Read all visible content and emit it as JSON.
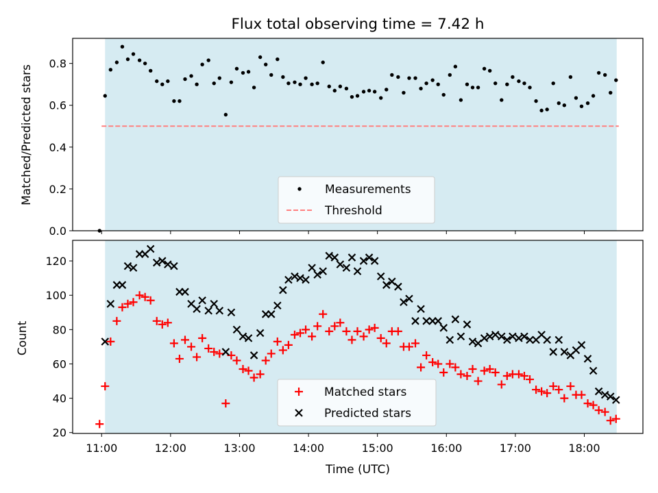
{
  "figure_title": "Flux total observing time = 7.42 h",
  "colors": {
    "observing_band": "#add8e6",
    "measurements": "#000000",
    "threshold": "#ff7f7f",
    "matched": "#ff0000",
    "predicted": "#000000"
  },
  "chart_data": [
    {
      "type": "scatter",
      "title": "Flux total observing time = 7.42 h",
      "xlabel": "",
      "ylabel": "Matched/Predicted stars",
      "xlim": [
        10.58,
        18.85
      ],
      "ylim": [
        0,
        0.92
      ],
      "yticks": [
        0.0,
        0.2,
        0.4,
        0.6,
        0.8
      ],
      "ytick_labels": [
        "0.0",
        "0.2",
        "0.4",
        "0.6",
        "0.8"
      ],
      "xticks": [
        11,
        12,
        13,
        14,
        15,
        16,
        17,
        18
      ],
      "observing_window": [
        11.05,
        18.47
      ],
      "legend": {
        "position": "bottom-center",
        "entries": [
          "Measurements",
          "Threshold"
        ]
      },
      "threshold": {
        "name": "Threshold",
        "y": 0.5,
        "x_range": [
          11.0,
          18.5
        ]
      },
      "series": [
        {
          "name": "Measurements",
          "x": [
            10.97,
            11.05,
            11.13,
            11.22,
            11.3,
            11.38,
            11.46,
            11.55,
            11.63,
            11.71,
            11.8,
            11.88,
            11.96,
            12.05,
            12.13,
            12.21,
            12.3,
            12.38,
            12.46,
            12.55,
            12.63,
            12.71,
            12.8,
            12.88,
            12.96,
            13.05,
            13.13,
            13.21,
            13.3,
            13.38,
            13.46,
            13.55,
            13.63,
            13.71,
            13.8,
            13.88,
            13.96,
            14.05,
            14.13,
            14.21,
            14.3,
            14.38,
            14.46,
            14.55,
            14.63,
            14.71,
            14.8,
            14.88,
            14.96,
            15.05,
            15.13,
            15.21,
            15.3,
            15.38,
            15.46,
            15.55,
            15.63,
            15.71,
            15.8,
            15.88,
            15.96,
            16.05,
            16.13,
            16.21,
            16.3,
            16.38,
            16.46,
            16.55,
            16.63,
            16.71,
            16.8,
            16.88,
            16.96,
            17.05,
            17.13,
            17.21,
            17.3,
            17.38,
            17.46,
            17.55,
            17.63,
            17.71,
            17.8,
            17.88,
            17.96,
            18.05,
            18.13,
            18.21,
            18.3,
            18.38,
            18.46
          ],
          "y": [
            0.0,
            0.645,
            0.77,
            0.805,
            0.88,
            0.82,
            0.845,
            0.815,
            0.8,
            0.765,
            0.715,
            0.7,
            0.715,
            0.62,
            0.62,
            0.725,
            0.74,
            0.7,
            0.795,
            0.815,
            0.705,
            0.73,
            0.555,
            0.71,
            0.775,
            0.755,
            0.76,
            0.685,
            0.83,
            0.795,
            0.745,
            0.82,
            0.735,
            0.705,
            0.71,
            0.7,
            0.73,
            0.7,
            0.705,
            0.805,
            0.69,
            0.67,
            0.69,
            0.68,
            0.64,
            0.645,
            0.665,
            0.67,
            0.665,
            0.635,
            0.675,
            0.745,
            0.735,
            0.66,
            0.73,
            0.73,
            0.68,
            0.705,
            0.72,
            0.7,
            0.65,
            0.745,
            0.785,
            0.625,
            0.7,
            0.685,
            0.685,
            0.775,
            0.765,
            0.705,
            0.625,
            0.7,
            0.735,
            0.715,
            0.705,
            0.685,
            0.62,
            0.575,
            0.58,
            0.705,
            0.61,
            0.6,
            0.735,
            0.635,
            0.595,
            0.61,
            0.645,
            0.755,
            0.745,
            0.66,
            0.72
          ]
        }
      ]
    },
    {
      "type": "scatter",
      "xlabel": "Time (UTC)",
      "ylabel": "Count",
      "xlim": [
        10.58,
        18.85
      ],
      "ylim": [
        19.5,
        132
      ],
      "yticks": [
        20,
        40,
        60,
        80,
        100,
        120
      ],
      "ytick_labels": [
        "20",
        "40",
        "60",
        "80",
        "100",
        "120"
      ],
      "xticks": [
        11,
        12,
        13,
        14,
        15,
        16,
        17,
        18
      ],
      "xtick_labels": [
        "11:00",
        "12:00",
        "13:00",
        "14:00",
        "15:00",
        "16:00",
        "17:00",
        "18:00"
      ],
      "observing_window": [
        11.05,
        18.47
      ],
      "legend": {
        "position": "bottom-center",
        "entries": [
          "Matched stars",
          "Predicted stars"
        ]
      },
      "series": [
        {
          "name": "Matched stars",
          "marker": "plus",
          "x": [
            10.97,
            11.05,
            11.13,
            11.22,
            11.3,
            11.38,
            11.46,
            11.55,
            11.63,
            11.71,
            11.8,
            11.88,
            11.96,
            12.05,
            12.13,
            12.21,
            12.3,
            12.38,
            12.46,
            12.55,
            12.63,
            12.71,
            12.8,
            12.88,
            12.96,
            13.05,
            13.13,
            13.21,
            13.3,
            13.38,
            13.46,
            13.55,
            13.63,
            13.71,
            13.8,
            13.88,
            13.96,
            14.05,
            14.13,
            14.21,
            14.3,
            14.38,
            14.46,
            14.55,
            14.63,
            14.71,
            14.8,
            14.88,
            14.96,
            15.05,
            15.13,
            15.21,
            15.3,
            15.38,
            15.46,
            15.55,
            15.63,
            15.71,
            15.8,
            15.88,
            15.96,
            16.05,
            16.13,
            16.21,
            16.3,
            16.38,
            16.46,
            16.55,
            16.63,
            16.71,
            16.8,
            16.88,
            16.96,
            17.05,
            17.13,
            17.21,
            17.3,
            17.38,
            17.46,
            17.55,
            17.63,
            17.71,
            17.8,
            17.88,
            17.96,
            18.05,
            18.13,
            18.21,
            18.3,
            18.38,
            18.46
          ],
          "y": [
            25,
            47,
            73,
            85,
            93,
            95,
            96,
            100,
            99,
            97,
            85,
            83,
            84,
            72,
            63,
            74,
            70,
            64,
            75,
            69,
            67,
            66,
            37,
            65,
            62,
            57,
            56,
            52,
            54,
            62,
            66,
            73,
            68,
            71,
            77,
            78,
            80,
            76,
            82,
            89,
            79,
            82,
            84,
            79,
            74,
            79,
            76,
            80,
            81,
            75,
            72,
            79,
            79,
            70,
            70,
            72,
            58,
            65,
            61,
            60,
            55,
            60,
            58,
            54,
            53,
            57,
            50,
            56,
            57,
            55,
            48,
            53,
            54,
            54,
            53,
            51,
            45,
            44,
            43,
            47,
            45,
            40,
            47,
            42,
            42,
            37,
            36,
            33,
            32,
            27,
            28
          ]
        },
        {
          "name": "Predicted stars",
          "marker": "x",
          "x": [
            11.05,
            11.13,
            11.22,
            11.3,
            11.38,
            11.46,
            11.55,
            11.63,
            11.71,
            11.8,
            11.88,
            11.96,
            12.05,
            12.13,
            12.21,
            12.3,
            12.38,
            12.46,
            12.55,
            12.63,
            12.71,
            12.8,
            12.88,
            12.96,
            13.05,
            13.13,
            13.21,
            13.3,
            13.38,
            13.46,
            13.55,
            13.63,
            13.71,
            13.8,
            13.88,
            13.96,
            14.05,
            14.13,
            14.21,
            14.3,
            14.38,
            14.46,
            14.55,
            14.63,
            14.71,
            14.8,
            14.88,
            14.96,
            15.05,
            15.13,
            15.21,
            15.3,
            15.38,
            15.46,
            15.55,
            15.63,
            15.71,
            15.8,
            15.88,
            15.96,
            16.05,
            16.13,
            16.21,
            16.3,
            16.38,
            16.46,
            16.55,
            16.63,
            16.71,
            16.8,
            16.88,
            16.96,
            17.05,
            17.13,
            17.21,
            17.3,
            17.38,
            17.46,
            17.55,
            17.63,
            17.71,
            17.8,
            17.88,
            17.96,
            18.05,
            18.13,
            18.21,
            18.3,
            18.38,
            18.46
          ],
          "y": [
            73,
            95,
            106,
            106,
            117,
            116,
            124,
            124,
            127,
            119,
            120,
            118,
            117,
            102,
            102,
            95,
            92,
            97,
            91,
            95,
            91,
            67,
            90,
            80,
            76,
            75,
            65,
            78,
            89,
            89,
            94,
            103,
            109,
            111,
            110,
            109,
            116,
            112,
            114,
            123,
            122,
            118,
            116,
            122,
            114,
            120,
            122,
            120,
            111,
            106,
            108,
            105,
            96,
            98,
            85,
            92,
            85,
            85,
            85,
            81,
            74,
            86,
            76,
            83,
            73,
            72,
            75,
            76,
            77,
            76,
            74,
            76,
            75,
            76,
            74,
            74,
            77,
            74,
            67,
            74,
            67,
            65,
            68,
            71,
            63,
            56,
            44,
            42,
            41,
            39
          ]
        }
      ]
    }
  ]
}
